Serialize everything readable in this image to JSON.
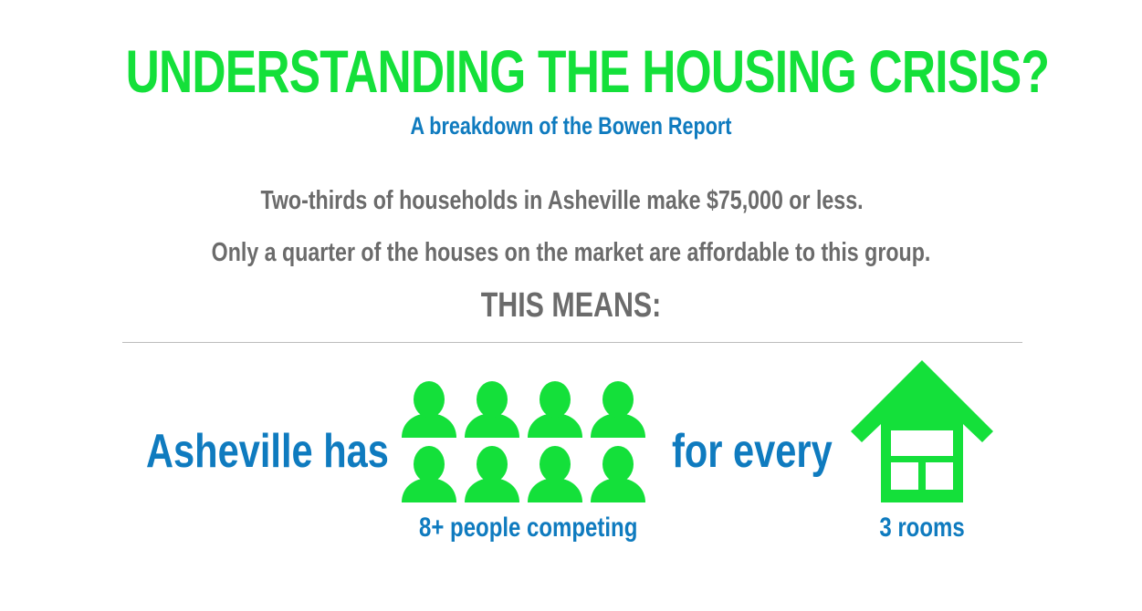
{
  "header": {
    "title": "UNDERSTANDING THE HOUSING CRISIS?",
    "subtitle": "A breakdown of the Bowen Report"
  },
  "stats": {
    "line1": "Two-thirds of households in Asheville make $75,000 or less.",
    "line2": "Only a quarter of the houses on the market are affordable to this group.",
    "means": "THIS MEANS:"
  },
  "comparison": {
    "left_label": "Asheville has",
    "middle_label": "for every",
    "people_caption": "8+ people competing",
    "rooms_caption": "3 rooms",
    "people_count": 8,
    "people_icon": "person-icon",
    "house_icon": "house-icon"
  },
  "colors": {
    "green": "#14e03a",
    "blue": "#0f7bbf",
    "gray": "#6b6b6b"
  }
}
